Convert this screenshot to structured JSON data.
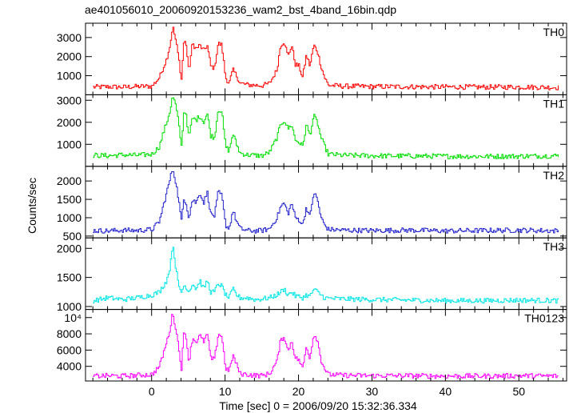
{
  "figure": {
    "title": "ae401056010_20060920153236_wam2_bst_4band_16bin.qdp",
    "ylabel": "Counts/sec",
    "xlabel": "Time [sec] 0 = 2006/09/20 15:32:36.334"
  },
  "chart_data": {
    "type": "line",
    "title": "ae401056010_20060920153236_wam2_bst_4band_16bin.qdp",
    "xlabel": "Time [sec] 0 = 2006/09/20 15:32:36.334",
    "ylabel": "Counts/sec",
    "xlim": [
      -9,
      56.5
    ],
    "xticks": [
      0,
      10,
      20,
      30,
      40,
      50
    ],
    "xtick_labels": [
      "0",
      "10",
      "20",
      "30",
      "40",
      "50"
    ],
    "grid": false,
    "panels": [
      {
        "name": "TH0",
        "color": "#ff0000",
        "ylim": [
          0,
          3750
        ],
        "yticks": [
          1000,
          2000,
          3000
        ],
        "ytick_labels": [
          "1000",
          "2000",
          "3000"
        ],
        "x": [
          -8,
          -6,
          -4,
          -2,
          0,
          1,
          1.5,
          2,
          2.5,
          2.8,
          3.2,
          3.6,
          4,
          4.3,
          4.6,
          5,
          5.5,
          6,
          6.5,
          7,
          7.5,
          8,
          8.5,
          9,
          9.5,
          10,
          10.5,
          11,
          11.5,
          12,
          13,
          14,
          15,
          16,
          17,
          17.5,
          18,
          18.5,
          19,
          19.5,
          20,
          20.5,
          21,
          21.5,
          22,
          22.5,
          23,
          23.5,
          24,
          26,
          30,
          35,
          40,
          45,
          50,
          55.5
        ],
        "y": [
          400,
          420,
          400,
          430,
          450,
          900,
          1400,
          1900,
          2700,
          3600,
          2900,
          2000,
          800,
          2700,
          2800,
          1200,
          2700,
          2400,
          2600,
          2300,
          2600,
          1500,
          1400,
          2700,
          2600,
          900,
          600,
          1300,
          1000,
          600,
          520,
          500,
          480,
          600,
          1300,
          2600,
          2800,
          2000,
          2600,
          1600,
          1500,
          900,
          2100,
          1500,
          2600,
          2300,
          1500,
          900,
          500,
          450,
          430,
          420,
          410,
          400,
          410,
          380
        ]
      },
      {
        "name": "TH1",
        "color": "#00dd00",
        "ylim": [
          0,
          3250
        ],
        "yticks": [
          1000,
          2000,
          3000
        ],
        "ytick_labels": [
          "1000",
          "2000",
          "3000"
        ],
        "x": [
          -8,
          -6,
          -4,
          -2,
          0,
          1,
          1.5,
          2,
          2.5,
          2.8,
          3.2,
          3.6,
          4,
          4.3,
          4.6,
          5,
          5.5,
          6,
          6.5,
          7,
          7.5,
          8,
          8.5,
          9,
          9.5,
          10,
          10.5,
          11,
          11.5,
          12,
          13,
          14,
          15,
          16,
          17,
          17.5,
          18,
          18.5,
          19,
          19.5,
          20,
          20.5,
          21,
          21.5,
          22,
          22.5,
          23,
          23.5,
          24,
          26,
          30,
          35,
          40,
          45,
          50,
          55.5
        ],
        "y": [
          500,
          480,
          520,
          500,
          550,
          900,
          1500,
          2000,
          2600,
          3200,
          2800,
          2000,
          900,
          2400,
          2500,
          1300,
          2200,
          2100,
          2300,
          2000,
          2400,
          1400,
          1300,
          2600,
          2500,
          900,
          700,
          1500,
          1000,
          600,
          520,
          500,
          480,
          650,
          1300,
          1900,
          2100,
          1700,
          1900,
          1200,
          1100,
          900,
          1900,
          1400,
          2300,
          2000,
          1300,
          900,
          550,
          500,
          480,
          470,
          460,
          450,
          460,
          480
        ]
      },
      {
        "name": "TH2",
        "color": "#2222cc",
        "ylim": [
          450,
          2400
        ],
        "yticks": [
          500,
          1000,
          1500,
          2000
        ],
        "ytick_labels": [
          "500",
          "1000",
          "1500",
          "2000"
        ],
        "x": [
          -8,
          -6,
          -4,
          -2,
          0,
          1,
          1.5,
          2,
          2.5,
          2.8,
          3.2,
          3.6,
          4,
          4.3,
          4.6,
          5,
          5.5,
          6,
          6.5,
          7,
          7.5,
          8,
          8.5,
          9,
          9.5,
          10,
          10.5,
          11,
          11.5,
          12,
          13,
          14,
          15,
          16,
          17,
          17.5,
          18,
          18.5,
          19,
          19.5,
          20,
          20.5,
          21,
          21.5,
          22,
          22.5,
          23,
          23.5,
          24,
          26,
          30,
          35,
          40,
          45,
          50,
          55.5
        ],
        "y": [
          650,
          640,
          660,
          650,
          680,
          900,
          1300,
          1700,
          2100,
          2350,
          2000,
          1500,
          900,
          1500,
          1450,
          1000,
          1500,
          1400,
          1700,
          1400,
          1700,
          1100,
          1050,
          1700,
          1600,
          800,
          700,
          1200,
          900,
          700,
          650,
          640,
          650,
          700,
          1000,
          1300,
          1400,
          1100,
          1400,
          1000,
          950,
          800,
          1300,
          1000,
          1700,
          1500,
          1000,
          800,
          680,
          660,
          650,
          660,
          640,
          650,
          660,
          640
        ]
      },
      {
        "name": "TH3",
        "color": "#00e5e5",
        "ylim": [
          950,
          2180
        ],
        "yticks": [
          1000,
          1500,
          2000
        ],
        "ytick_labels": [
          "1000",
          "1500",
          "2000"
        ],
        "x": [
          -8,
          -6,
          -4,
          -2,
          0,
          1,
          1.5,
          2,
          2.5,
          2.8,
          3.2,
          3.6,
          4,
          4.3,
          4.6,
          5,
          5.5,
          6,
          6.5,
          7,
          7.5,
          8,
          8.5,
          9,
          9.5,
          10,
          10.5,
          11,
          11.5,
          12,
          13,
          14,
          15,
          16,
          17,
          17.5,
          18,
          18.5,
          19,
          19.5,
          20,
          20.5,
          21,
          21.5,
          22,
          22.5,
          23,
          23.5,
          24,
          26,
          30,
          35,
          40,
          45,
          50,
          55.5
        ],
        "y": [
          1100,
          1150,
          1120,
          1150,
          1200,
          1250,
          1350,
          1450,
          1700,
          2100,
          1700,
          1350,
          1250,
          1350,
          1350,
          1250,
          1400,
          1300,
          1450,
          1300,
          1450,
          1250,
          1250,
          1400,
          1350,
          1200,
          1150,
          1300,
          1200,
          1150,
          1150,
          1120,
          1130,
          1150,
          1200,
          1250,
          1300,
          1200,
          1250,
          1180,
          1170,
          1150,
          1200,
          1170,
          1300,
          1250,
          1200,
          1150,
          1140,
          1130,
          1120,
          1110,
          1100,
          1100,
          1110,
          1100
        ]
      },
      {
        "name": "TH0123",
        "color": "#ff00ff",
        "ylim": [
          2200,
          11000
        ],
        "yticks": [
          4000,
          6000,
          8000,
          10000
        ],
        "ytick_labels": [
          "4000",
          "6000",
          "8000",
          "10⁴"
        ],
        "x": [
          -8,
          -6,
          -4,
          -2,
          0,
          1,
          1.5,
          2,
          2.5,
          2.8,
          3.2,
          3.6,
          4,
          4.3,
          4.6,
          5,
          5.5,
          6,
          6.5,
          7,
          7.5,
          8,
          8.5,
          9,
          9.5,
          10,
          10.5,
          11,
          11.5,
          12,
          13,
          14,
          15,
          16,
          17,
          17.5,
          18,
          18.5,
          19,
          19.5,
          20,
          20.5,
          21,
          21.5,
          22,
          22.5,
          23,
          23.5,
          24,
          26,
          30,
          35,
          40,
          45,
          50,
          55.5
        ],
        "y": [
          2800,
          2850,
          2800,
          2900,
          3000,
          4000,
          5500,
          7000,
          8800,
          10600,
          8800,
          6500,
          3800,
          7900,
          8000,
          4500,
          7500,
          7000,
          7800,
          7000,
          8000,
          5000,
          4800,
          8000,
          7700,
          3800,
          3400,
          5400,
          4200,
          3100,
          3000,
          2900,
          2850,
          3100,
          4600,
          7200,
          7700,
          5800,
          7200,
          5000,
          4800,
          3700,
          6500,
          5000,
          8000,
          7300,
          4800,
          3700,
          3000,
          2900,
          2850,
          2850,
          2800,
          2800,
          2850,
          2800
        ]
      }
    ]
  }
}
